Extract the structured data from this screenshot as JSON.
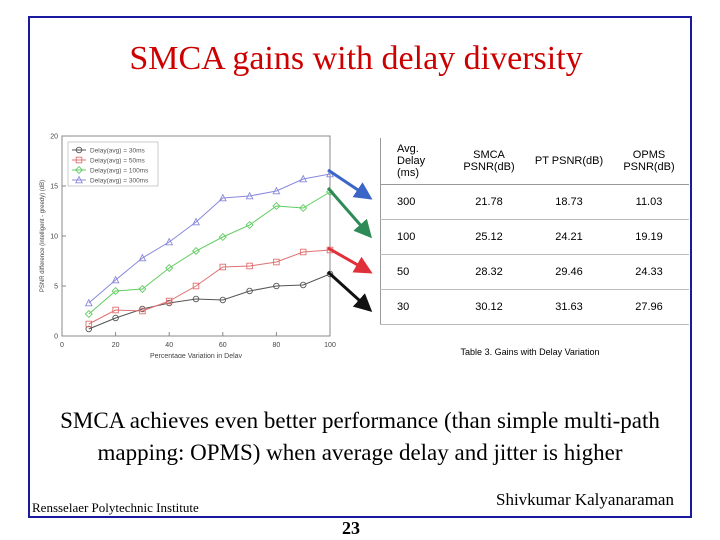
{
  "slide": {
    "title": "SMCA gains with delay diversity",
    "body": "SMCA achieves even better performance (than simple multi-path mapping: OPMS) when  average delay and jitter is higher",
    "footer_left": "Rensselaer Polytechnic Institute",
    "footer_right": "Shivkumar Kalyanaraman",
    "page_number": "23"
  },
  "table": {
    "headers": [
      "Avg. Delay (ms)",
      "SMCA PSNR(dB)",
      "PT PSNR(dB)",
      "OPMS PSNR(dB)"
    ],
    "rows": [
      [
        "300",
        "21.78",
        "18.73",
        "11.03"
      ],
      [
        "100",
        "25.12",
        "24.21",
        "19.19"
      ],
      [
        "50",
        "28.32",
        "29.46",
        "24.33"
      ],
      [
        "30",
        "30.12",
        "31.63",
        "27.96"
      ]
    ],
    "caption": "Table 3. Gains with Delay Variation"
  },
  "arrow_colors": [
    "#3a66c8",
    "#2e8b57",
    "#e0303a",
    "#111111"
  ],
  "chart_data": {
    "type": "line",
    "xlabel": "Percentage Variation in Delay",
    "ylabel": "PSNR difference (intelligent - greedy) (dB)",
    "xlim": [
      0,
      100
    ],
    "ylim": [
      0,
      20
    ],
    "xticks": [
      "0",
      "20",
      "40",
      "60",
      "80",
      "100"
    ],
    "yticks": [
      "0",
      "5",
      "10",
      "15",
      "20"
    ],
    "legend_position": "top-left",
    "x": [
      10,
      20,
      30,
      40,
      50,
      60,
      70,
      80,
      90,
      100
    ],
    "series": [
      {
        "name": "Delay(avg) = 30ms",
        "color": "#555555",
        "marker": "circle",
        "values": [
          0.7,
          1.8,
          2.7,
          3.3,
          3.7,
          3.6,
          4.5,
          5.0,
          5.1,
          6.2
        ]
      },
      {
        "name": "Delay(avg) = 50ms",
        "color": "#e07070",
        "marker": "square",
        "values": [
          1.2,
          2.6,
          2.5,
          3.5,
          5.0,
          6.9,
          7.0,
          7.4,
          8.4,
          8.6
        ]
      },
      {
        "name": "Delay(avg) = 100ms",
        "color": "#60cc60",
        "marker": "diamond",
        "values": [
          2.2,
          4.5,
          4.7,
          6.8,
          8.5,
          9.9,
          11.1,
          13.0,
          12.8,
          14.4
        ]
      },
      {
        "name": "Delay(avg) = 300ms",
        "color": "#8888dd",
        "marker": "triangle",
        "values": [
          3.3,
          5.6,
          7.8,
          9.4,
          11.4,
          13.8,
          14.0,
          14.5,
          15.7,
          16.2
        ]
      }
    ]
  }
}
